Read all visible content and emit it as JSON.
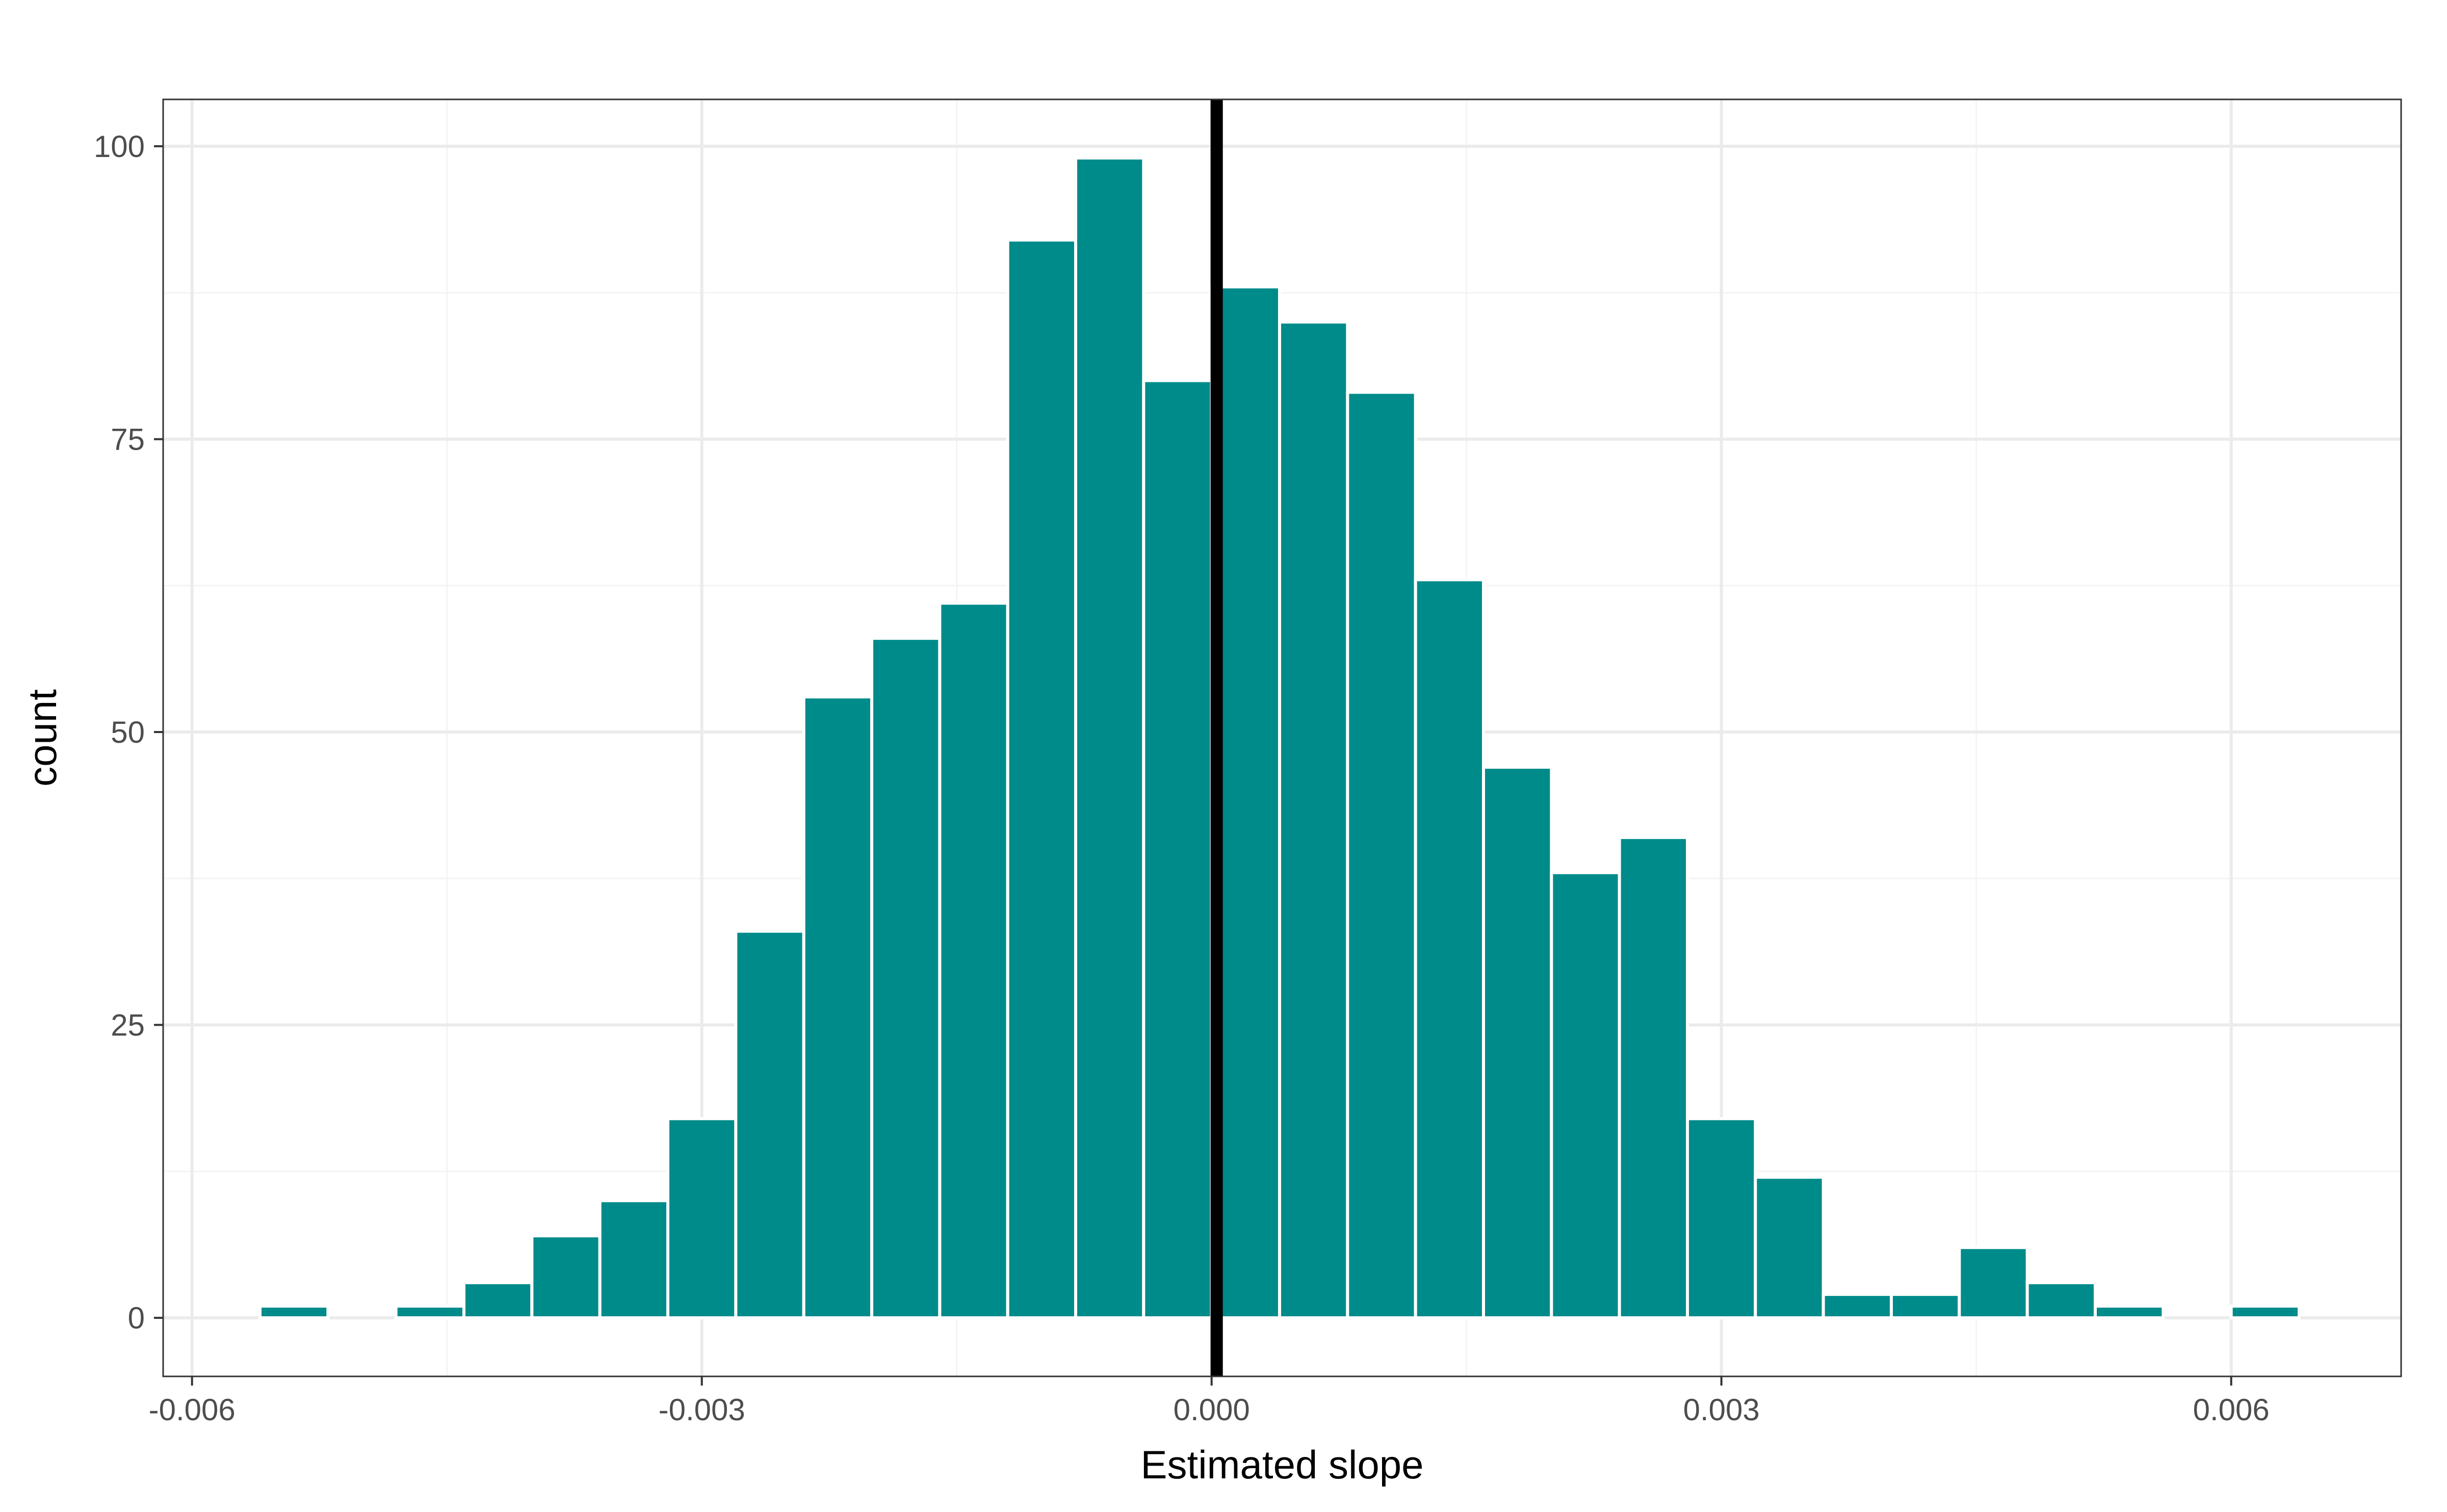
{
  "chart_data": {
    "type": "bar",
    "subtype": "histogram",
    "xlabel": "Estimated slope",
    "ylabel": "count",
    "xlim": [
      -0.00617,
      0.007
    ],
    "ylim": [
      -5,
      104
    ],
    "x_ticks": [
      {
        "value": -0.006,
        "label": "-0.006"
      },
      {
        "value": -0.003,
        "label": "-0.003"
      },
      {
        "value": 0.0,
        "label": "0.000"
      },
      {
        "value": 0.003,
        "label": "0.003"
      },
      {
        "value": 0.006,
        "label": "0.006"
      }
    ],
    "y_ticks": [
      {
        "value": 0,
        "label": "0"
      },
      {
        "value": 25,
        "label": "25"
      },
      {
        "value": 50,
        "label": "50"
      },
      {
        "value": 75,
        "label": "75"
      },
      {
        "value": 100,
        "label": "100"
      }
    ],
    "minor_x": [
      -0.0045,
      -0.0015,
      0.0015,
      0.0045
    ],
    "minor_y": [
      12.5,
      37.5,
      62.5,
      87.5
    ],
    "bin_width": 0.0004,
    "bins": [
      {
        "x": -0.0054,
        "count": 1
      },
      {
        "x": -0.005,
        "count": 0
      },
      {
        "x": -0.0046,
        "count": 1
      },
      {
        "x": -0.0042,
        "count": 3
      },
      {
        "x": -0.0038,
        "count": 7
      },
      {
        "x": -0.0034,
        "count": 10
      },
      {
        "x": -0.003,
        "count": 17
      },
      {
        "x": -0.0026,
        "count": 33
      },
      {
        "x": -0.0022,
        "count": 53
      },
      {
        "x": -0.0018,
        "count": 58
      },
      {
        "x": -0.0014,
        "count": 61
      },
      {
        "x": -0.001,
        "count": 92
      },
      {
        "x": -0.0006,
        "count": 99
      },
      {
        "x": -0.0002,
        "count": 80
      },
      {
        "x": 0.0002,
        "count": 88
      },
      {
        "x": 0.0006,
        "count": 85
      },
      {
        "x": 0.001,
        "count": 79
      },
      {
        "x": 0.0014,
        "count": 63
      },
      {
        "x": 0.0018,
        "count": 47
      },
      {
        "x": 0.0022,
        "count": 38
      },
      {
        "x": 0.0026,
        "count": 41
      },
      {
        "x": 0.003,
        "count": 17
      },
      {
        "x": 0.0034,
        "count": 12
      },
      {
        "x": 0.0038,
        "count": 2
      },
      {
        "x": 0.0042,
        "count": 2
      },
      {
        "x": 0.0046,
        "count": 6
      },
      {
        "x": 0.005,
        "count": 3
      },
      {
        "x": 0.0054,
        "count": 1
      },
      {
        "x": 0.0058,
        "count": 0
      },
      {
        "x": 0.0062,
        "count": 1
      }
    ],
    "vline": {
      "x": 3e-05
    },
    "colors": {
      "bar_fill": "#008B8B",
      "bar_outline": "#ffffff",
      "vline": "#000000",
      "grid_major": "#ebebeb",
      "grid_minor": "#f4f4f4",
      "panel_border": "#333333"
    },
    "grid": true,
    "theme": "bw"
  }
}
